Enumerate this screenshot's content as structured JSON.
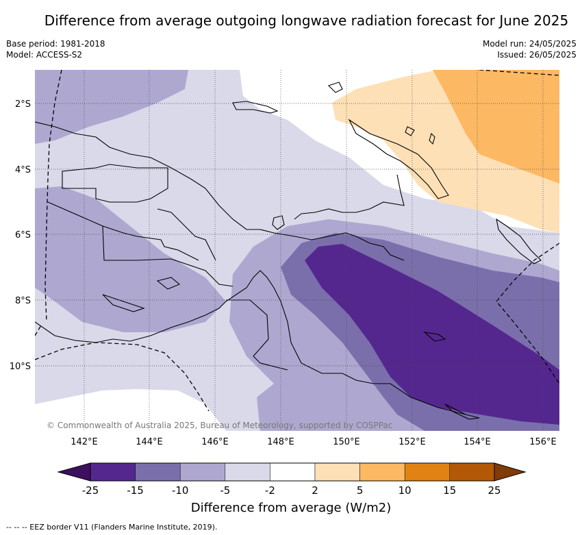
{
  "title": "Difference from average outgoing longwave radiation forecast for June 2025",
  "meta_left": {
    "base_period": "Base period: 1981-2018",
    "model": "Model: ACCESS-S2"
  },
  "meta_right": {
    "model_run": "Model run: 24/05/2025",
    "issued": "Issued: 26/05/2025"
  },
  "copyright": "© Commonwealth of Australia 2025, Bureau of Meteorology, supported by COSPPac",
  "lat_labels": [
    "2°S",
    "4°S",
    "6°S",
    "8°S",
    "10°S"
  ],
  "lon_labels": [
    "142°E",
    "144°E",
    "146°E",
    "148°E",
    "150°E",
    "152°E",
    "154°E",
    "156°E"
  ],
  "colorbar": {
    "title": "Difference from average (W/m2)",
    "ticks": [
      "-25",
      "-15",
      "-10",
      "-5",
      "-2",
      "2",
      "5",
      "10",
      "15",
      "25"
    ],
    "colors": [
      "#3d0f5f",
      "#54278f",
      "#7b6fab",
      "#aea8d0",
      "#d9d9ea",
      "#ffffff",
      "#fee0b6",
      "#fdb863",
      "#e08214",
      "#b35806",
      "#7f3b08"
    ]
  },
  "footnote": "--  --  -- EEZ border V11 (Flanders Marine Institute, 2019)."
}
